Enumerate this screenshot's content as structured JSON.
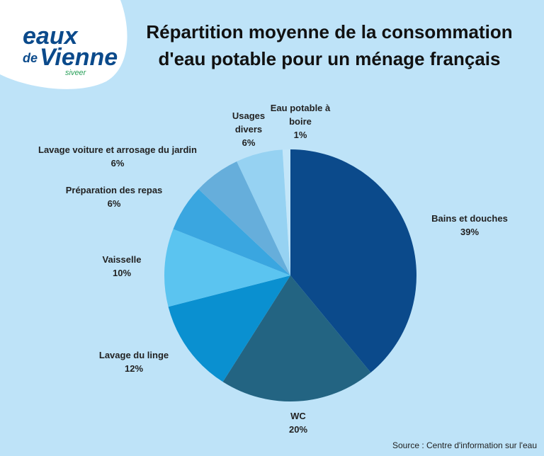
{
  "logo": {
    "word1": "eaux",
    "word2": "de",
    "word3": "Vienne",
    "tagline": "siveer"
  },
  "chart_data": {
    "type": "pie",
    "title": "Répartition moyenne de la consommation d'eau potable pour un ménage français",
    "categories": [
      "Bains et douches",
      "WC",
      "Lavage du linge",
      "Vaisselle",
      "Préparation des repas",
      "Lavage voiture et arrosage du jardin",
      "Usages divers",
      "Eau potable à boire"
    ],
    "values": [
      39,
      20,
      12,
      10,
      6,
      6,
      6,
      1
    ],
    "value_labels": [
      "39%",
      "20%",
      "12%",
      "10%",
      "6%",
      "6%",
      "6%",
      "1%"
    ],
    "colors": [
      "#0b4a8b",
      "#236482",
      "#0a90d0",
      "#5bc4f0",
      "#3aa6e0",
      "#66aedb",
      "#96d2f2",
      "#c3e6f9"
    ],
    "source": "Source : Centre d'information sur l'eau"
  }
}
